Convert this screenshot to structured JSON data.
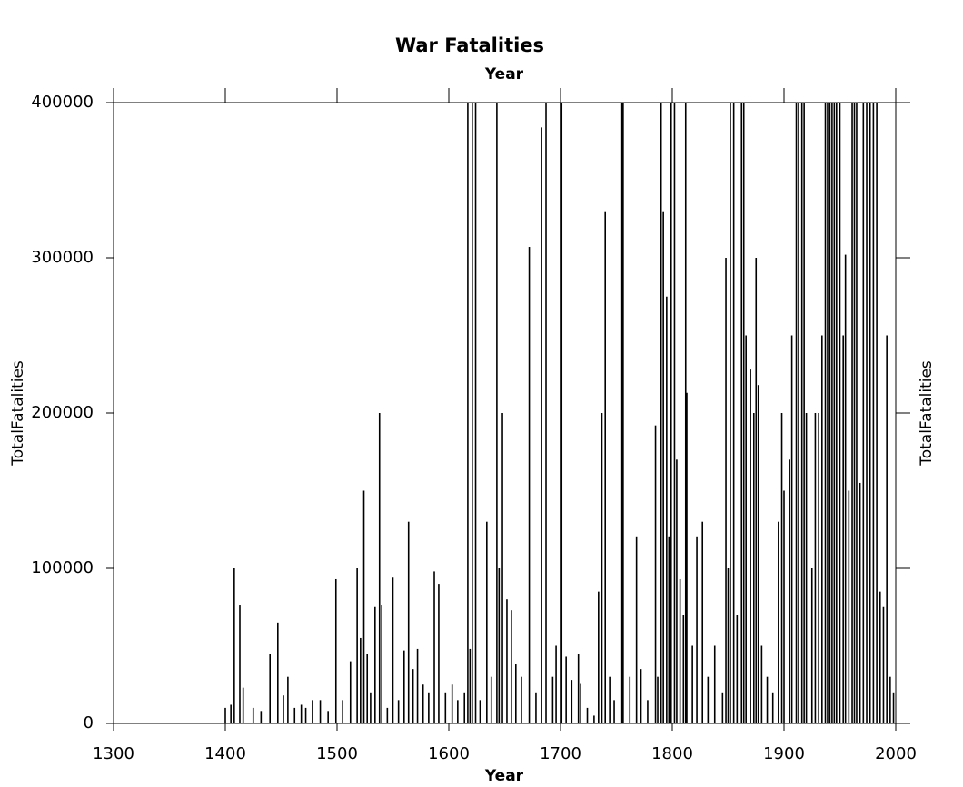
{
  "chart_data": {
    "type": "bar",
    "title": "War Fatalities",
    "xlabel": "Year",
    "x2label": "Year",
    "ylabel": "TotalFatalities",
    "y2label": "TotalFatalities",
    "color": "#000000",
    "xlim": [
      1300,
      2000
    ],
    "xticks": [
      1300,
      1400,
      1500,
      1600,
      1700,
      1800,
      1900,
      2000
    ],
    "ylim": [
      0,
      400000
    ],
    "yticks": [
      0,
      100000,
      200000,
      300000,
      400000
    ],
    "x": [
      1400,
      1405,
      1408,
      1413,
      1416,
      1425,
      1432,
      1440,
      1447,
      1452,
      1456,
      1462,
      1468,
      1472,
      1478,
      1485,
      1492,
      1499,
      1505,
      1512,
      1518,
      1521,
      1524,
      1527,
      1530,
      1534,
      1538,
      1540,
      1545,
      1550,
      1555,
      1560,
      1564,
      1568,
      1572,
      1577,
      1582,
      1587,
      1591,
      1597,
      1603,
      1608,
      1614,
      1617,
      1619,
      1621,
      1624,
      1628,
      1634,
      1638,
      1643,
      1645,
      1648,
      1652,
      1656,
      1660,
      1665,
      1672,
      1678,
      1683,
      1687,
      1693,
      1696,
      1700,
      1701,
      1705,
      1710,
      1716,
      1718,
      1724,
      1730,
      1734,
      1737,
      1740,
      1744,
      1748,
      1755,
      1756,
      1762,
      1768,
      1772,
      1778,
      1785,
      1787,
      1790,
      1792,
      1795,
      1797,
      1799,
      1802,
      1804,
      1807,
      1810,
      1812,
      1813,
      1818,
      1822,
      1827,
      1832,
      1838,
      1845,
      1848,
      1850,
      1852,
      1855,
      1858,
      1862,
      1864,
      1866,
      1870,
      1873,
      1875,
      1877,
      1880,
      1885,
      1890,
      1895,
      1898,
      1900,
      1905,
      1907,
      1911,
      1913,
      1916,
      1918,
      1920,
      1925,
      1928,
      1931,
      1934,
      1937,
      1939,
      1941,
      1943,
      1945,
      1947,
      1950,
      1953,
      1955,
      1958,
      1961,
      1963,
      1965,
      1968,
      1971,
      1974,
      1977,
      1980,
      1983,
      1986,
      1989,
      1992,
      1995,
      1998
    ],
    "values": [
      10000,
      12000,
      100000,
      76000,
      23000,
      10000,
      8000,
      45000,
      65000,
      18000,
      30000,
      10000,
      12000,
      10000,
      15000,
      15000,
      8000,
      93000,
      15000,
      40000,
      100000,
      55000,
      150000,
      45000,
      20000,
      75000,
      200000,
      76000,
      10000,
      94000,
      15000,
      47000,
      130000,
      35000,
      48000,
      25000,
      20000,
      98000,
      90000,
      20000,
      25000,
      15000,
      20000,
      400000,
      48000,
      400000,
      400000,
      15000,
      130000,
      30000,
      400000,
      100000,
      200000,
      80000,
      73000,
      38000,
      30000,
      307000,
      20000,
      384000,
      400000,
      30000,
      50000,
      400000,
      400000,
      43000,
      28000,
      45000,
      26000,
      10000,
      5000,
      85000,
      200000,
      330000,
      30000,
      15000,
      400000,
      400000,
      30000,
      120000,
      35000,
      15000,
      192000,
      30000,
      400000,
      330000,
      275000,
      120000,
      400000,
      400000,
      170000,
      93000,
      70000,
      400000,
      213000,
      50000,
      120000,
      130000,
      30000,
      50000,
      20000,
      300000,
      100000,
      400000,
      400000,
      70000,
      400000,
      400000,
      250000,
      228000,
      200000,
      300000,
      218000,
      50000,
      30000,
      20000,
      130000,
      200000,
      150000,
      170000,
      250000,
      400000,
      400000,
      400000,
      400000,
      200000,
      100000,
      200000,
      200000,
      250000,
      400000,
      400000,
      400000,
      400000,
      400000,
      400000,
      400000,
      250000,
      302000,
      150000,
      400000,
      400000,
      400000,
      155000,
      400000,
      400000,
      400000,
      400000,
      400000,
      85000,
      75000,
      250000,
      30000,
      20000
    ]
  }
}
